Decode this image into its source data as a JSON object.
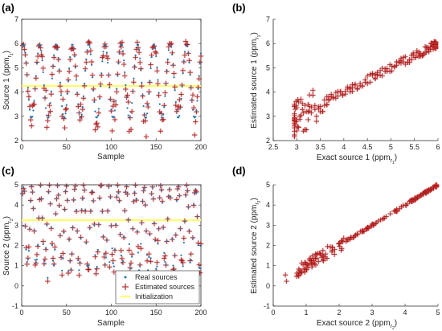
{
  "figure": {
    "panels": [
      {
        "id": "a",
        "label": "(a)"
      },
      {
        "id": "b",
        "label": "(b)"
      },
      {
        "id": "c",
        "label": "(c)"
      },
      {
        "id": "d",
        "label": "(d)"
      }
    ]
  },
  "colors": {
    "real": "#1f77b4",
    "estimated": "#8b1a1a",
    "estimated_halo": "#ff3b3b",
    "initialization": "#ffff66",
    "axis": "#262626"
  },
  "legend": {
    "placement": "bottom-right of panel (c)",
    "entries": [
      "Real sources",
      "Estimated sources",
      "Initialization"
    ]
  },
  "chart_data": [
    {
      "panel": "a",
      "type": "scatter",
      "xlabel": "Sample",
      "ylabel": "Source 1 (ppm r1)",
      "ylabel_main": "Source 1 (ppm",
      "ylabel_sub": "r",
      "ylabel_subsub": "1",
      "ylabel_close": ")",
      "xlim": [
        0,
        200
      ],
      "ylim": [
        2,
        7
      ],
      "xticks": [
        0,
        50,
        100,
        150,
        200
      ],
      "yticks": [
        2,
        3,
        4,
        5,
        6,
        7
      ],
      "initialization": 4.25,
      "signal": {
        "n": 200,
        "period": 18.2,
        "center": 4.45,
        "amplitude": 1.55
      }
    },
    {
      "panel": "b",
      "type": "scatter",
      "xlabel_main": "Exact source 1 (ppm",
      "xlabel_sub": "r",
      "xlabel_subsub": "1",
      "xlabel_close": ")",
      "ylabel_main": "Estimated source 1 (ppm",
      "ylabel_sub": "r",
      "ylabel_subsub": "1",
      "ylabel_close": ")",
      "xlim": [
        2.5,
        6
      ],
      "ylim": [
        2,
        7
      ],
      "xticks": [
        2.5,
        3,
        3.5,
        4,
        4.5,
        5,
        5.5,
        6
      ],
      "yticks": [
        2,
        3,
        4,
        5,
        6,
        7
      ]
    },
    {
      "panel": "c",
      "type": "scatter",
      "xlabel": "Sample",
      "ylabel_main": "Source 2 (ppm",
      "ylabel_sub": "r",
      "ylabel_subsub": "2",
      "ylabel_close": ")",
      "xlim": [
        0,
        200
      ],
      "ylim": [
        -1,
        5
      ],
      "xticks": [
        0,
        50,
        100,
        150,
        200
      ],
      "yticks": [
        -1,
        0,
        1,
        2,
        3,
        4,
        5
      ],
      "initialization": 3.25,
      "signal": {
        "n": 200,
        "period": 9.6,
        "center": 3.0,
        "amplitude": 2.0
      }
    },
    {
      "panel": "d",
      "type": "scatter",
      "xlabel_main": "Exact source 2 (ppm",
      "xlabel_sub": "r",
      "xlabel_subsub": "2",
      "xlabel_close": ")",
      "ylabel_main": "Estimated source 2 (ppm",
      "ylabel_sub": "r",
      "ylabel_subsub": "2",
      "ylabel_close": ")",
      "xlim": [
        0,
        5
      ],
      "ylim": [
        -1,
        5
      ],
      "xticks": [
        0,
        1,
        2,
        3,
        4,
        5
      ],
      "yticks": [
        -1,
        0,
        1,
        2,
        3,
        4,
        5
      ]
    }
  ]
}
